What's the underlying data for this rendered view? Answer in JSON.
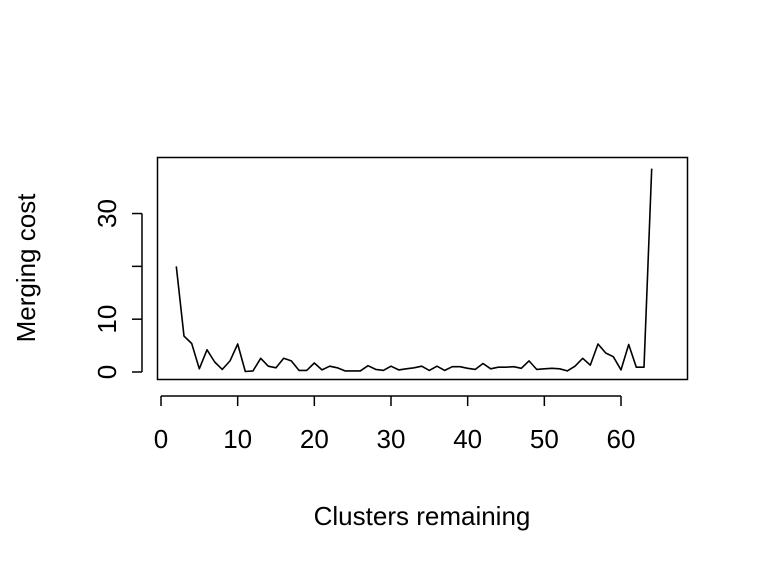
{
  "chart_data": {
    "type": "line",
    "title": "",
    "xlabel": "Clusters remaining",
    "ylabel": "Merging cost",
    "xlim": [
      0,
      66
    ],
    "ylim": [
      0,
      39
    ],
    "x_ticks": [
      0,
      10,
      20,
      30,
      40,
      50,
      60
    ],
    "y_ticks": [
      0,
      10,
      20,
      30
    ],
    "y_tick_labels": [
      "0",
      "10",
      "",
      "30"
    ],
    "grid": false,
    "line_color": "#000000",
    "series": [
      {
        "x": [
          2,
          3,
          4,
          5,
          6,
          7,
          8,
          9,
          10,
          11,
          12,
          13,
          14,
          15,
          16,
          17,
          18,
          19,
          20,
          21,
          22,
          23,
          24,
          25,
          26,
          27,
          28,
          29,
          30,
          31,
          32,
          33,
          34,
          35,
          36,
          37,
          38,
          39,
          40,
          41,
          42,
          43,
          44,
          45,
          46,
          47,
          48,
          49,
          50,
          51,
          52,
          53,
          54,
          55,
          56,
          57,
          58,
          59,
          60,
          61,
          62,
          63,
          64
        ],
        "values": [
          20,
          6.8,
          5.4,
          0.6,
          4.2,
          1.9,
          0.5,
          2.1,
          5.3,
          0.1,
          0.2,
          2.6,
          1.1,
          0.8,
          2.6,
          2.1,
          0.3,
          0.3,
          1.7,
          0.4,
          1.1,
          0.8,
          0.2,
          0.2,
          0.2,
          1.2,
          0.5,
          0.3,
          1.1,
          0.4,
          0.6,
          0.8,
          1.1,
          0.3,
          1.1,
          0.3,
          1.0,
          1.0,
          0.7,
          0.5,
          1.6,
          0.6,
          0.9,
          0.9,
          1.0,
          0.7,
          2.1,
          0.5,
          0.6,
          0.7,
          0.6,
          0.2,
          1.1,
          2.6,
          1.3,
          5.3,
          3.6,
          2.9,
          0.4,
          5.2,
          0.9,
          0.9,
          38.5
        ]
      }
    ]
  }
}
